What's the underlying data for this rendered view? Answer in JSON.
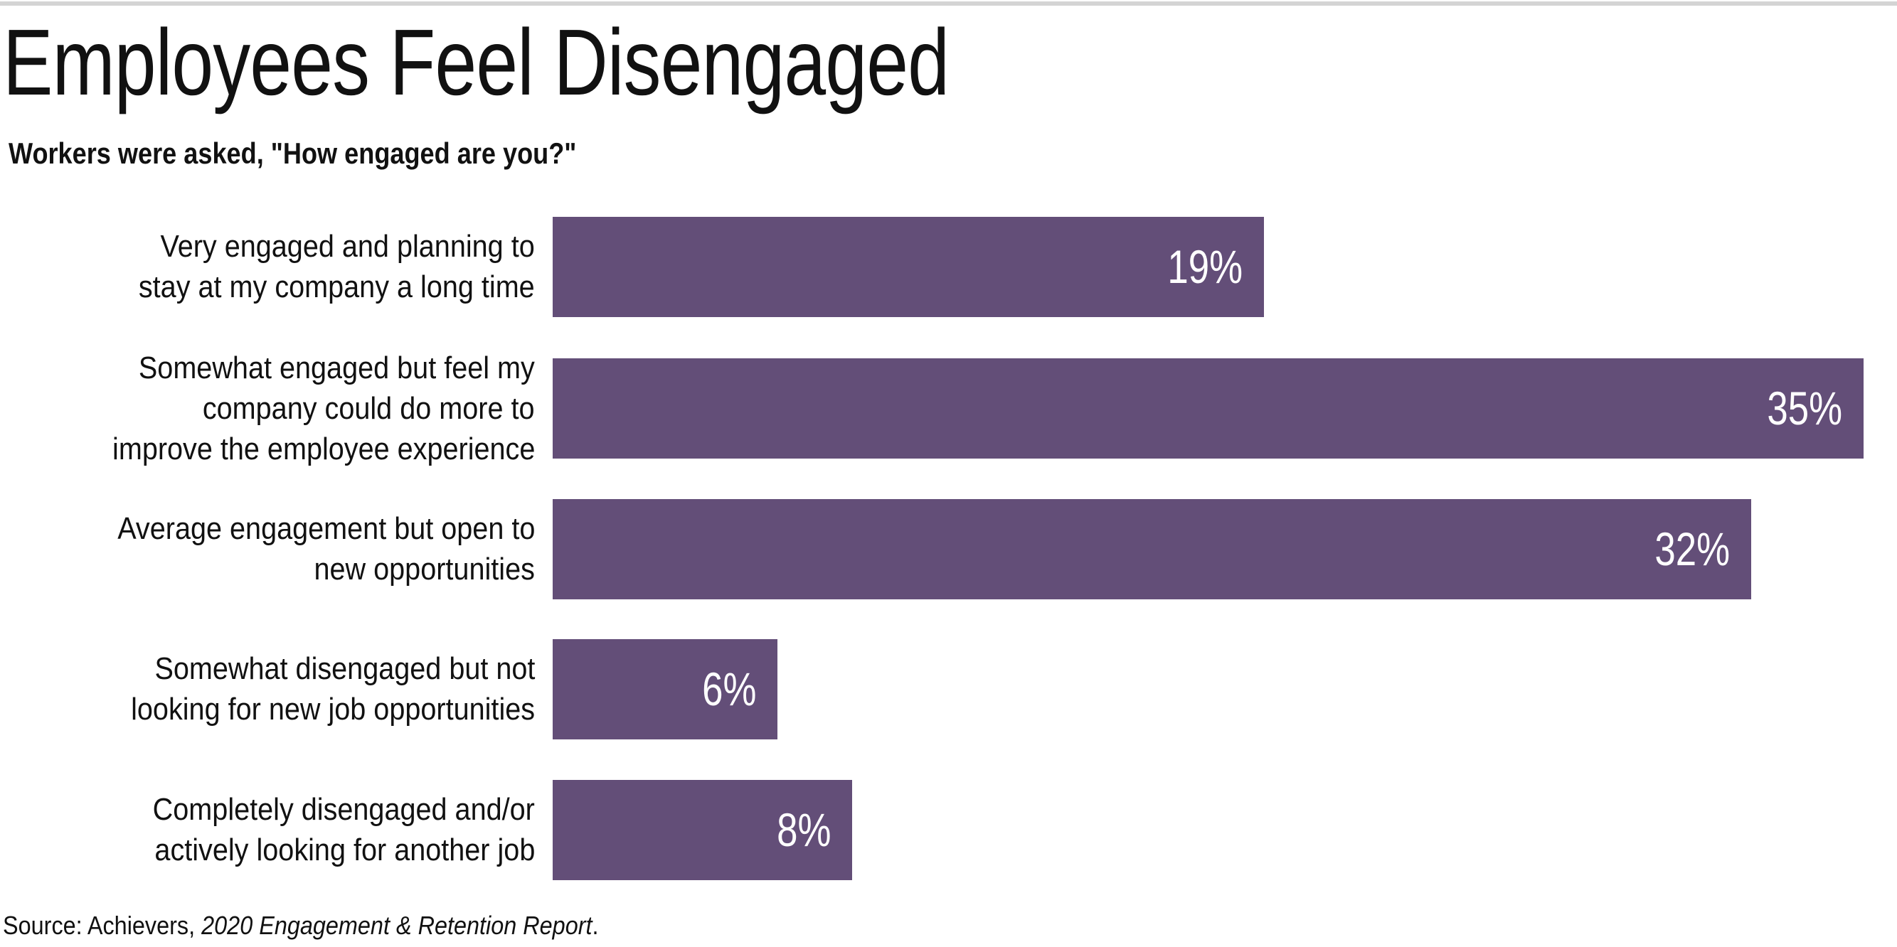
{
  "title": "Employees Feel Disengaged",
  "subtitle": "Workers were asked, \"How engaged are you?\"",
  "source": {
    "prefix": "Source: Achievers, ",
    "report": "2020 Engagement & Retention Report",
    "suffix": "."
  },
  "colors": {
    "bar": "#634e78",
    "top_rule": "#d4d4d4"
  },
  "chart_data": {
    "type": "bar",
    "orientation": "horizontal",
    "title": "Employees Feel Disengaged",
    "subtitle": "Workers were asked, \"How engaged are you?\"",
    "xlabel": "",
    "ylabel": "",
    "xlim": [
      0,
      35
    ],
    "grid": false,
    "categories": [
      [
        "Very engaged and planning to",
        "stay at my company a long time"
      ],
      [
        "Somewhat engaged but feel my",
        "company could do more to",
        "improve the employee experience"
      ],
      [
        "Average engagement but open to",
        "new opportunities"
      ],
      [
        "Somewhat disengaged but not",
        "looking for new job opportunities"
      ],
      [
        "Completely disengaged and/or",
        "actively looking for another job"
      ]
    ],
    "values": [
      19,
      35,
      32,
      6,
      8
    ],
    "value_labels": [
      "19%",
      "35%",
      "32%",
      "6%",
      "8%"
    ]
  }
}
